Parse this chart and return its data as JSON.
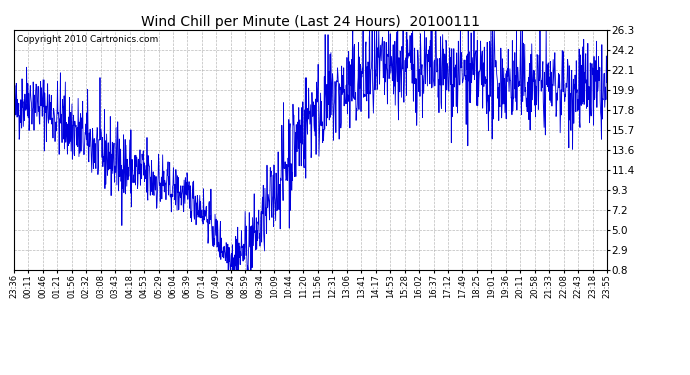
{
  "title": "Wind Chill per Minute (Last 24 Hours)  20100111",
  "copyright": "Copyright 2010 Cartronics.com",
  "line_color": "#0000DD",
  "bg_color": "#FFFFFF",
  "plot_bg_color": "#FFFFFF",
  "grid_color": "#AAAAAA",
  "yticks": [
    0.8,
    2.9,
    5.0,
    7.2,
    9.3,
    11.4,
    13.6,
    15.7,
    17.8,
    19.9,
    22.1,
    24.2,
    26.3
  ],
  "ylim": [
    0.8,
    26.3
  ],
  "xtick_labels": [
    "23:36",
    "00:11",
    "00:46",
    "01:21",
    "01:56",
    "02:32",
    "03:08",
    "03:43",
    "04:18",
    "04:53",
    "05:29",
    "06:04",
    "06:39",
    "07:14",
    "07:49",
    "08:24",
    "08:59",
    "09:34",
    "10:09",
    "10:44",
    "11:20",
    "11:56",
    "12:31",
    "13:06",
    "13:41",
    "14:17",
    "14:53",
    "15:28",
    "16:02",
    "16:37",
    "17:12",
    "17:49",
    "18:25",
    "19:01",
    "19:36",
    "20:11",
    "20:58",
    "21:33",
    "22:08",
    "22:43",
    "23:18",
    "23:55"
  ],
  "waypoints_x": [
    0,
    35,
    80,
    150,
    210,
    280,
    370,
    440,
    470,
    490,
    510,
    530,
    560,
    600,
    650,
    720,
    850,
    950,
    1050,
    1150,
    1300,
    1440
  ],
  "waypoints_y": [
    17.5,
    19.2,
    18.0,
    15.5,
    13.5,
    11.5,
    9.8,
    8.2,
    6.5,
    4.5,
    3.0,
    2.2,
    2.8,
    5.5,
    11.0,
    17.5,
    21.0,
    22.5,
    21.5,
    21.0,
    20.5,
    19.5
  ],
  "noise_seed": 42,
  "n_points": 1440
}
